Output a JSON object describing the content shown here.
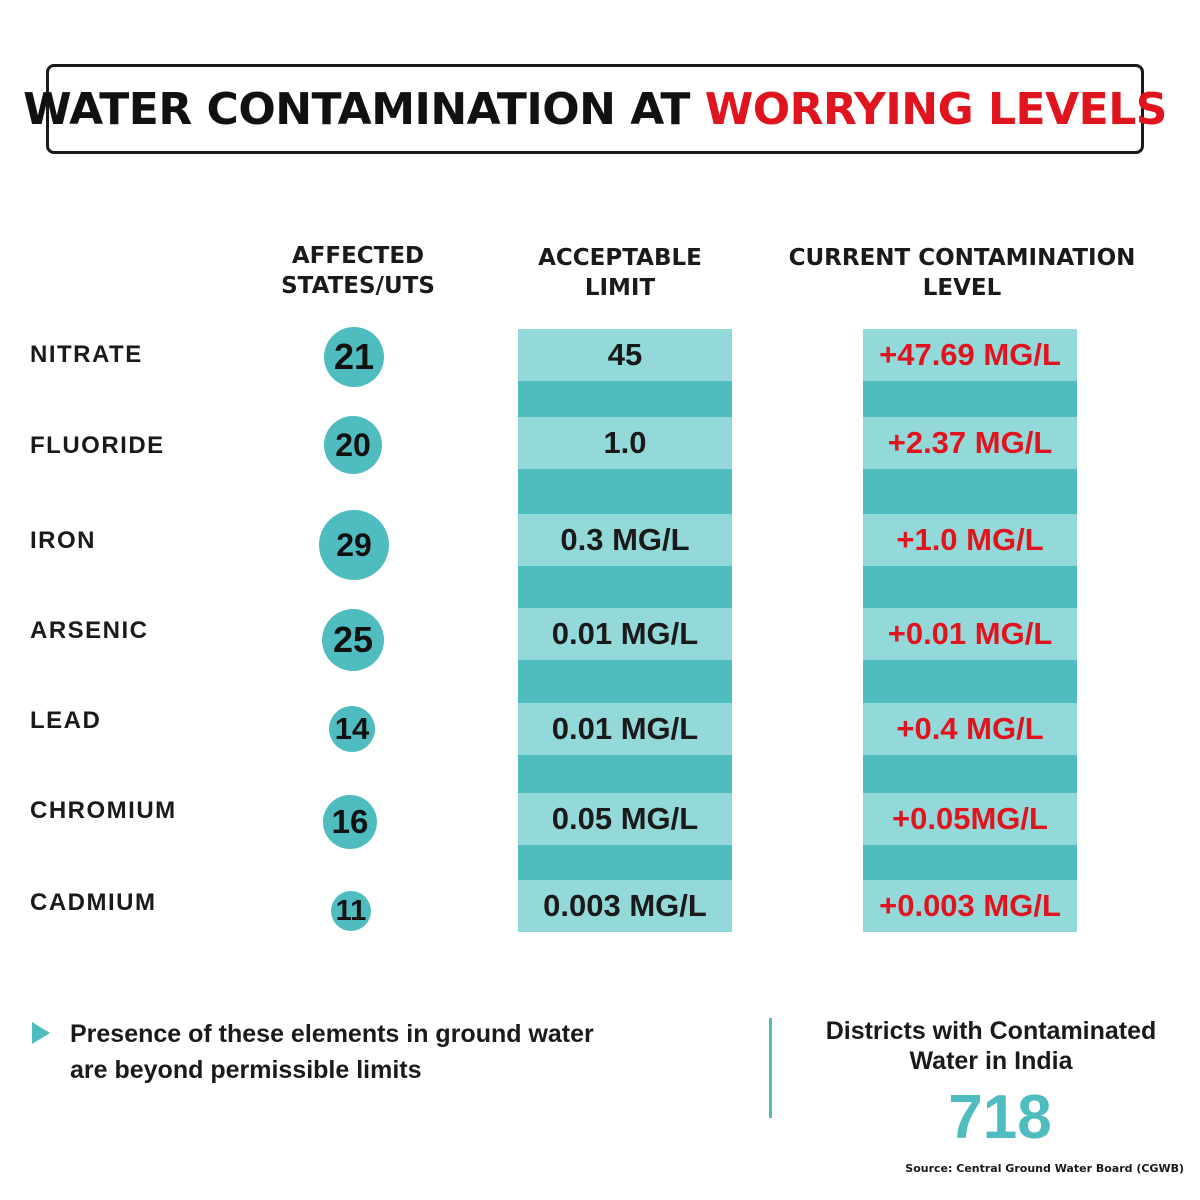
{
  "title": {
    "part1": "WATER CONTAMINATION AT ",
    "part2": "WORRYING LEVELS"
  },
  "headers": {
    "affected": [
      "AFFECTED",
      "STATES/UTS"
    ],
    "limit": [
      "ACCEPTABLE",
      "LIMIT"
    ],
    "current": [
      "CURRENT CONTAMINATION",
      "LEVEL"
    ]
  },
  "rows": [
    {
      "element": "NITRATE",
      "states": "21",
      "limit": "45",
      "current": "+47.69 MG/L"
    },
    {
      "element": "FLUORIDE",
      "states": "20",
      "limit": "1.0",
      "current": "+2.37 MG/L"
    },
    {
      "element": "IRON",
      "states": "29",
      "limit": "0.3 MG/L",
      "current": "+1.0 MG/L"
    },
    {
      "element": "ARSENIC",
      "states": "25",
      "limit": "0.01 MG/L",
      "current": "+0.01 MG/L"
    },
    {
      "element": "LEAD",
      "states": "14",
      "limit": "0.01 MG/L",
      "current": "+0.4 MG/L"
    },
    {
      "element": "CHROMIUM",
      "states": "16",
      "limit": "0.05 MG/L",
      "current": "+0.05MG/L"
    },
    {
      "element": "CADMIUM",
      "states": "11",
      "limit": "0.003 MG/L",
      "current": "+0.003 MG/L"
    }
  ],
  "note": [
    "Presence of these elements in ground water",
    "are beyond permissible limits"
  ],
  "districts": {
    "label": [
      "Districts with Contaminated",
      "Water in India"
    ],
    "value": "718"
  },
  "source": "Source: Central Ground Water Board (CGWB)",
  "colors": {
    "accent": "#4fbcbf",
    "accent_light": "#94d9d9",
    "red": "#e0141e"
  }
}
